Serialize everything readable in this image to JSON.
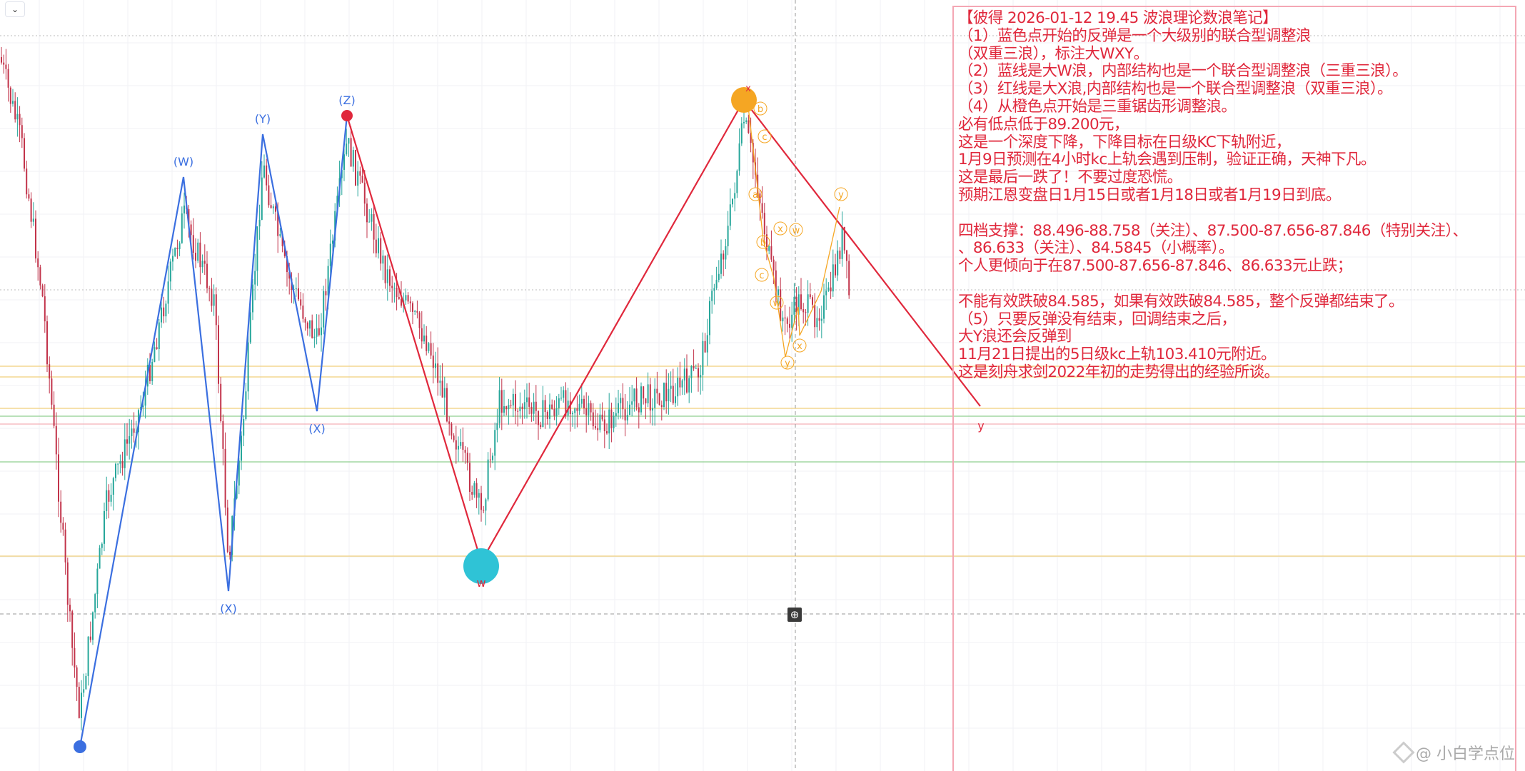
{
  "toolbar": {
    "collapse_icon": "chevron-down-icon",
    "collapse_glyph": "⌄"
  },
  "colors": {
    "up_candle": "#26a69a",
    "down_candle": "#c2334a",
    "blue_wave": "#3b6fe0",
    "red_wave": "#e0283c",
    "orange_wave": "#f5a623",
    "cyan_dot": "#2fc3d6",
    "note_text": "#e0283c",
    "level_yellow": "#f0cf7a",
    "level_green": "#8fcf8f"
  },
  "wave_labels": {
    "blue": [
      "(W)",
      "(X)",
      "(Y)",
      "(X)",
      "(Z)"
    ],
    "red": [
      "w",
      "x",
      "y"
    ],
    "orange": [
      "b",
      "c",
      "a",
      "x",
      "w",
      "b",
      "c",
      "w",
      "y",
      "x",
      "y"
    ]
  },
  "note": {
    "lines": [
      "【彼得 2026-01-12 19.45 波浪理论数浪笔记】",
      "（1）蓝色点开始的反弹是一个大级别的联合型调整浪",
      "（双重三浪），标注大WXY。",
      "（2）蓝线是大W浪，内部结构也是一个联合型调整浪（三重三浪）。",
      "（3）红线是大X浪,内部结构也是一个联合型调整浪（双重三浪）。",
      "（4）从橙色点开始是三重锯齿形调整浪。",
      "必有低点低于89.200元，",
      "这是一个深度下降，下降目标在日级KC下轨附近，",
      "1月9日预测在4小时kc上轨会遇到压制，验证正确，天神下凡。",
      "这是最后一跌了！不要过度恐慌。",
      "预期江恩变盘日1月15日或者1月18日或者1月19日到底。",
      "",
      "四档支撑：88.496-88.758（关注）、87.500-87.656-87.846（特别关注）、",
      "、86.633（关注）、84.5845（小概率）。",
      "个人更倾向于在87.500-87.656-87.846、86.633元止跌；",
      "",
      "不能有效跌破84.585，如果有效跌破84.585，整个反弹都结束了。",
      "（5）只要反弹没有结束，回调结束之后，",
      "大Y浪还会反弹到",
      "11月21日提出的5日级kc上轨103.410元附近。",
      "这是刻舟求剑2022年初的走势得出的经验所谈。"
    ]
  },
  "watermark": {
    "text": "@ 小白学点位"
  },
  "crosshair_tool": {
    "icon": "crosshair-icon",
    "glyph": "⊕"
  }
}
